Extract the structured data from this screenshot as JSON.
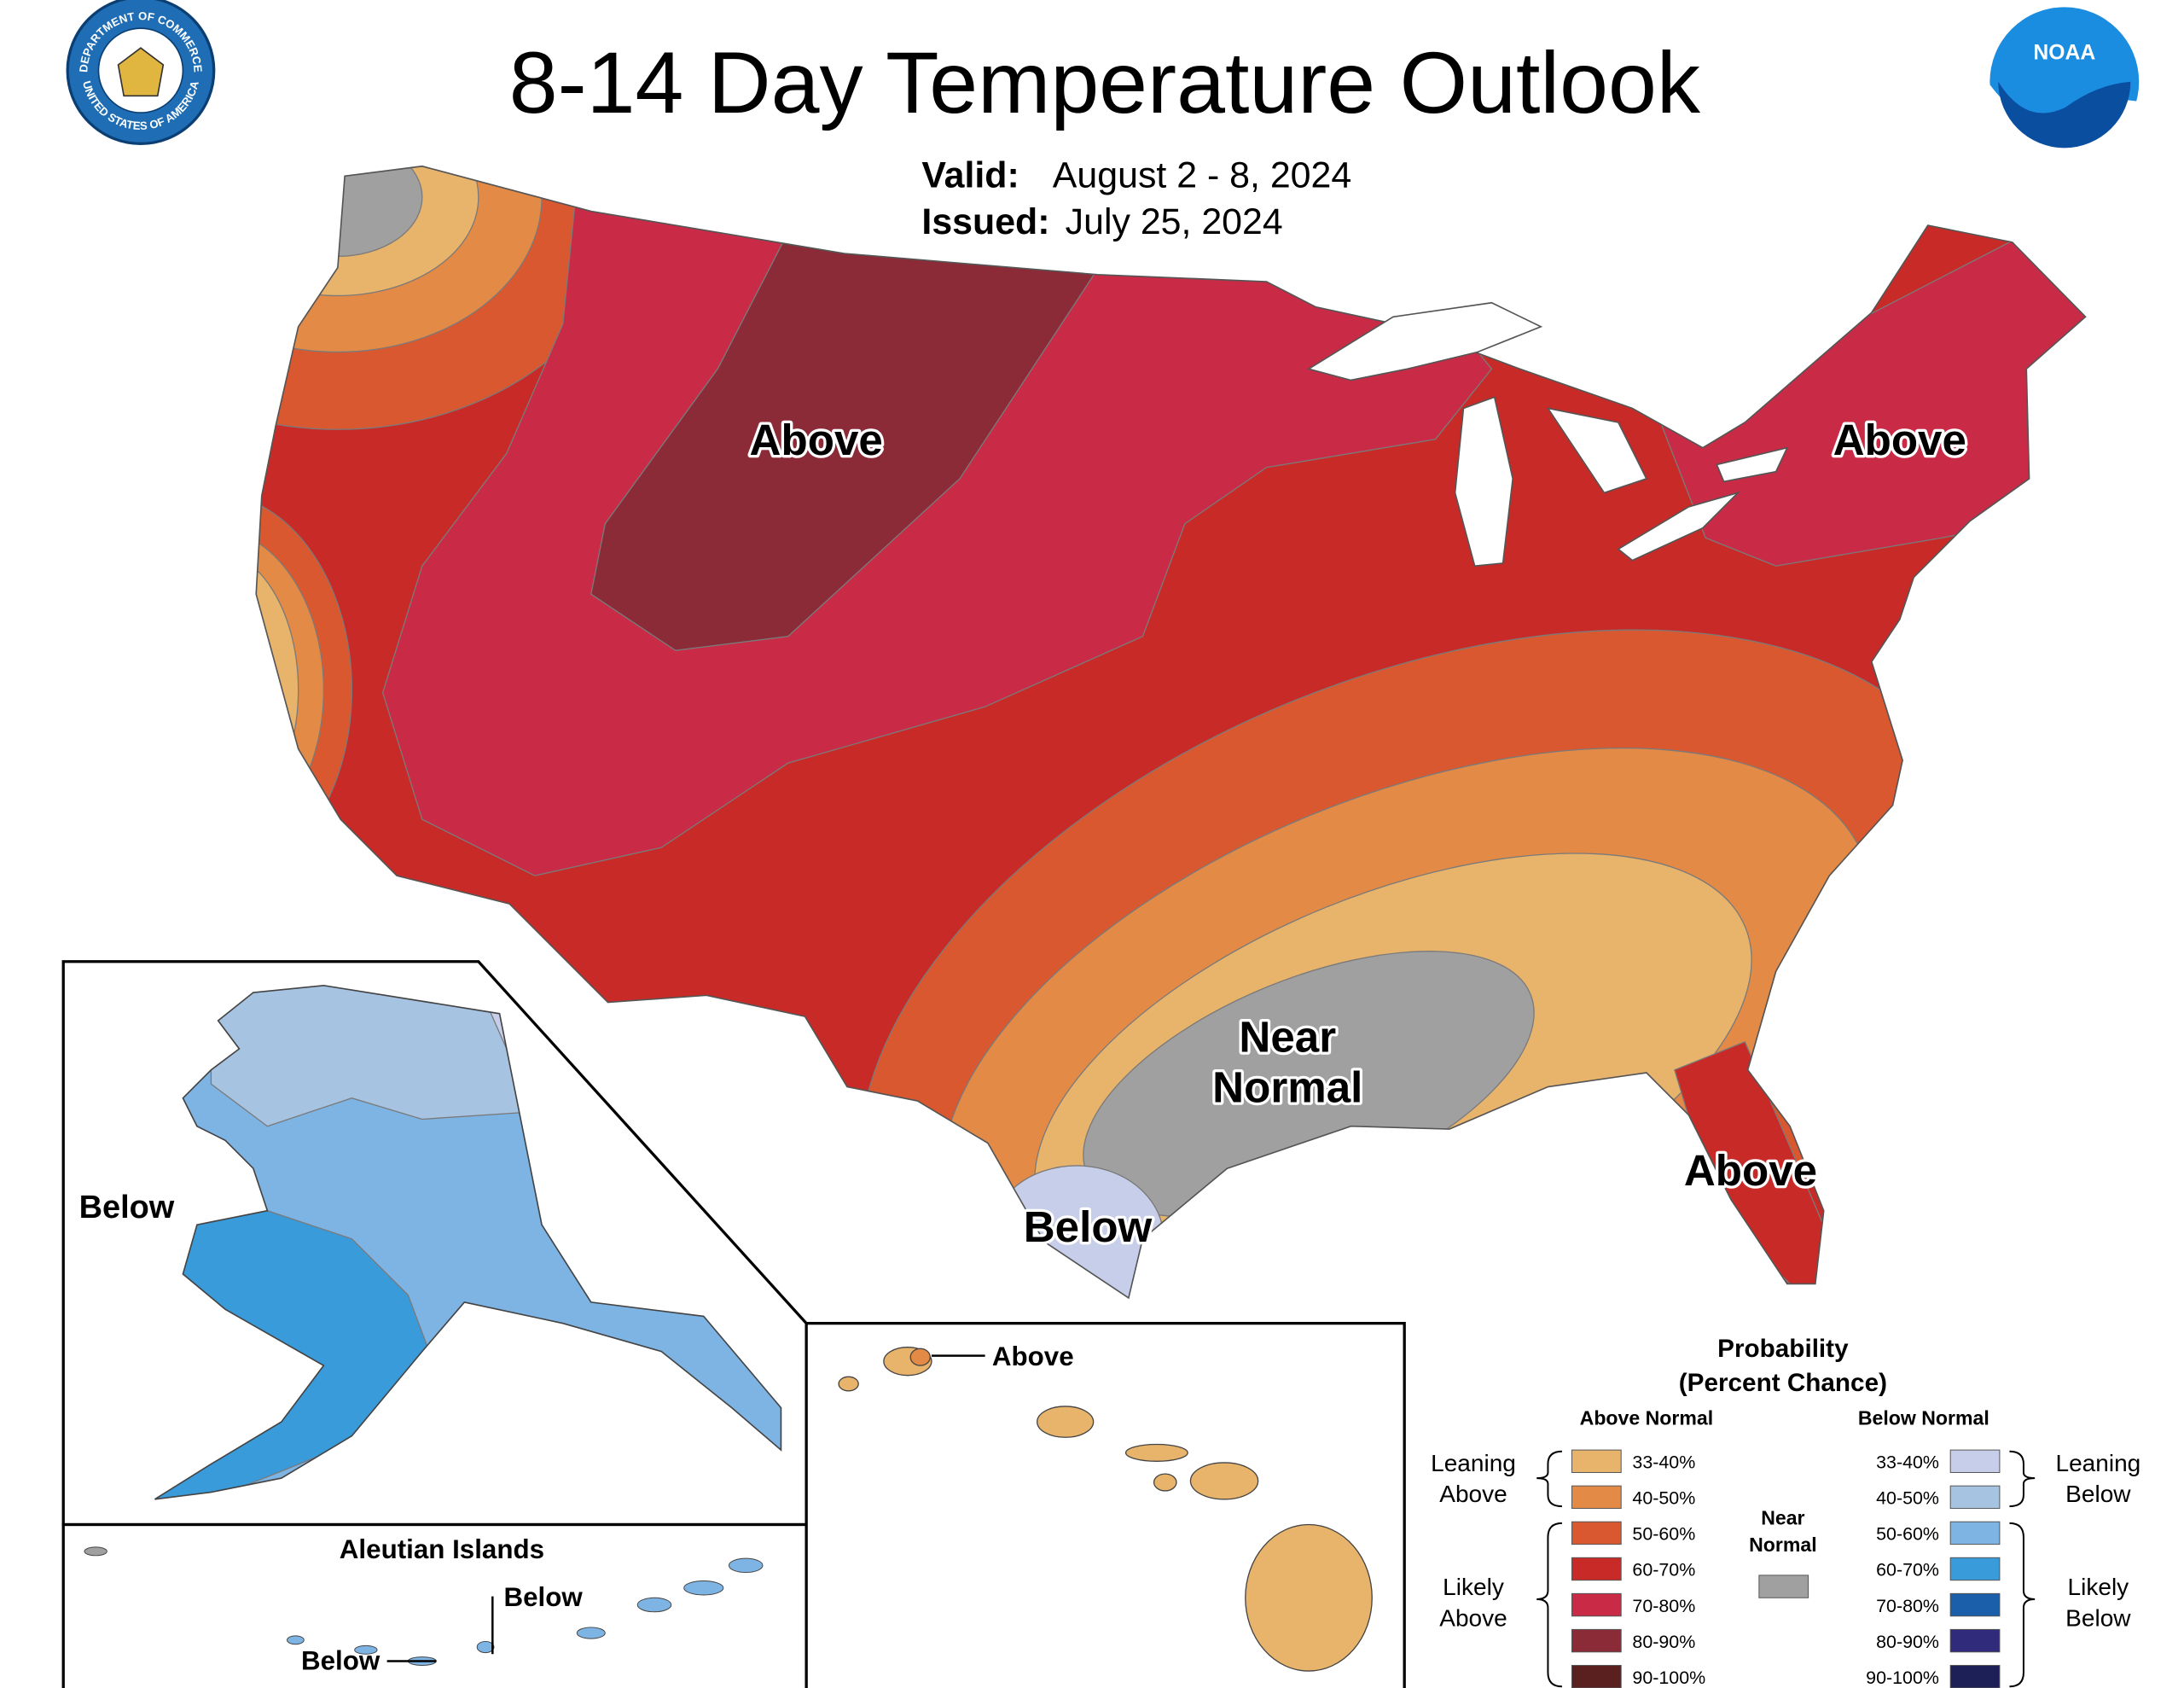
{
  "header": {
    "title": "8-14 Day Temperature Outlook",
    "valid_label": "Valid:",
    "valid_date": "August 2 - 8, 2024",
    "issued_label": "Issued:",
    "issued_date": "July 25, 2024"
  },
  "logos": {
    "seal_top": "DEPARTMENT OF COMMERCE",
    "seal_bottom": "UNITED STATES OF AMERICA",
    "noaa": "NOAA"
  },
  "map_labels": {
    "west": "Above",
    "northeast": "Above",
    "near_normal": [
      "Near",
      "Normal"
    ],
    "texas": "Below",
    "florida": "Above",
    "alaska": "Below",
    "aleutian_title": "Aleutian Islands",
    "aleutian_east": "Below",
    "aleutian_west": "Below",
    "hawaii": "Above"
  },
  "legend": {
    "title": [
      "Probability",
      "(Percent Chance)"
    ],
    "above": {
      "heading": "Above Normal",
      "items": [
        {
          "range": "33-40%",
          "color": "#e8b46c"
        },
        {
          "range": "40-50%",
          "color": "#e38a47"
        },
        {
          "range": "50-60%",
          "color": "#d9582f"
        },
        {
          "range": "60-70%",
          "color": "#c82b27"
        },
        {
          "range": "70-80%",
          "color": "#c92b47"
        },
        {
          "range": "80-90%",
          "color": "#8a2b37"
        },
        {
          "range": "90-100%",
          "color": "#5a1f1f"
        }
      ]
    },
    "below": {
      "heading": "Below Normal",
      "items": [
        {
          "range": "33-40%",
          "color": "#c6cee9"
        },
        {
          "range": "40-50%",
          "color": "#a7c3e2"
        },
        {
          "range": "50-60%",
          "color": "#7db4e4"
        },
        {
          "range": "60-70%",
          "color": "#3a9bdb"
        },
        {
          "range": "70-80%",
          "color": "#1b5ea9"
        },
        {
          "range": "80-90%",
          "color": "#302b7b"
        },
        {
          "range": "90-100%",
          "color": "#1c2056"
        }
      ]
    },
    "near": {
      "heading": [
        "Near",
        "Normal"
      ],
      "color": "#a0a0a0"
    },
    "groups": {
      "leaning_above": [
        "Leaning",
        "Above"
      ],
      "likely_above": [
        "Likely",
        "Above"
      ],
      "leaning_below": [
        "Leaning",
        "Below"
      ],
      "likely_below": [
        "Likely",
        "Below"
      ]
    }
  }
}
